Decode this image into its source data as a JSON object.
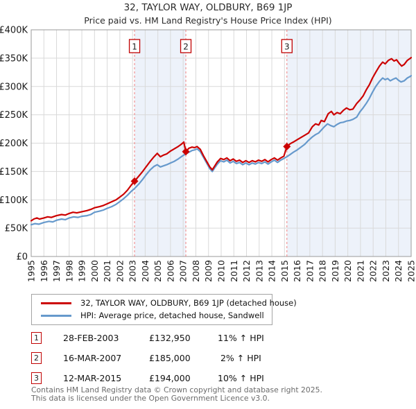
{
  "title": "32, TAYLOR WAY, OLDBURY, B69 1JP",
  "subtitle": "Price paid vs. HM Land Registry's House Price Index (HPI)",
  "chart_data": {
    "type": "line",
    "title": "32, TAYLOR WAY, OLDBURY, B69 1JP",
    "subtitle": "Price paid vs. HM Land Registry's House Price Index (HPI)",
    "x_axis": {
      "range": [
        1995,
        2025
      ],
      "ticks": [
        1995,
        1996,
        1997,
        1998,
        1999,
        2000,
        2001,
        2002,
        2003,
        2004,
        2005,
        2006,
        2007,
        2008,
        2009,
        2010,
        2011,
        2012,
        2013,
        2014,
        2015,
        2016,
        2017,
        2018,
        2019,
        2020,
        2021,
        2022,
        2023,
        2024,
        2025
      ]
    },
    "y_axis": {
      "range_k": [
        0,
        400
      ],
      "tick_step_k": 50,
      "ticks": [
        "£0",
        "£50K",
        "£100K",
        "£150K",
        "£200K",
        "£250K",
        "£300K",
        "£350K",
        "£400K"
      ]
    },
    "grid": true,
    "series": [
      {
        "name": "32, TAYLOR WAY, OLDBURY, B69 1JP (detached house)",
        "color": "#cc0000",
        "points": [
          [
            1995.0,
            63
          ],
          [
            1995.2,
            66
          ],
          [
            1995.45,
            68
          ],
          [
            1995.65,
            66
          ],
          [
            1996.0,
            68
          ],
          [
            1996.3,
            70
          ],
          [
            1996.6,
            69
          ],
          [
            1997.0,
            72
          ],
          [
            1997.4,
            74
          ],
          [
            1997.7,
            73
          ],
          [
            1998.0,
            76
          ],
          [
            1998.3,
            78
          ],
          [
            1998.6,
            77
          ],
          [
            1999.0,
            79
          ],
          [
            1999.4,
            81
          ],
          [
            1999.7,
            83
          ],
          [
            2000.0,
            86
          ],
          [
            2000.4,
            88
          ],
          [
            2000.7,
            90
          ],
          [
            2001.0,
            93
          ],
          [
            2001.3,
            96
          ],
          [
            2001.7,
            100
          ],
          [
            2002.0,
            105
          ],
          [
            2002.3,
            110
          ],
          [
            2002.6,
            117
          ],
          [
            2002.9,
            126
          ],
          [
            2003.16,
            132.95
          ],
          [
            2003.5,
            142
          ],
          [
            2003.8,
            150
          ],
          [
            2004.1,
            159
          ],
          [
            2004.4,
            168
          ],
          [
            2004.7,
            176
          ],
          [
            2004.95,
            182
          ],
          [
            2005.2,
            176
          ],
          [
            2005.45,
            179
          ],
          [
            2005.7,
            181
          ],
          [
            2006.0,
            186
          ],
          [
            2006.3,
            190
          ],
          [
            2006.6,
            194
          ],
          [
            2006.85,
            198
          ],
          [
            2007.05,
            202
          ],
          [
            2007.21,
            185
          ],
          [
            2007.45,
            191
          ],
          [
            2007.7,
            193
          ],
          [
            2007.9,
            192
          ],
          [
            2008.1,
            194
          ],
          [
            2008.35,
            189
          ],
          [
            2008.6,
            178
          ],
          [
            2008.85,
            168
          ],
          [
            2009.1,
            158
          ],
          [
            2009.3,
            153
          ],
          [
            2009.5,
            160
          ],
          [
            2009.7,
            167
          ],
          [
            2009.95,
            173
          ],
          [
            2010.2,
            171
          ],
          [
            2010.45,
            174
          ],
          [
            2010.7,
            169
          ],
          [
            2010.95,
            172
          ],
          [
            2011.2,
            168
          ],
          [
            2011.45,
            170
          ],
          [
            2011.7,
            166
          ],
          [
            2011.95,
            169
          ],
          [
            2012.2,
            166
          ],
          [
            2012.45,
            169
          ],
          [
            2012.7,
            167
          ],
          [
            2012.95,
            170
          ],
          [
            2013.2,
            168
          ],
          [
            2013.45,
            171
          ],
          [
            2013.7,
            167
          ],
          [
            2013.95,
            171
          ],
          [
            2014.2,
            174
          ],
          [
            2014.45,
            170
          ],
          [
            2014.7,
            174
          ],
          [
            2014.95,
            177
          ],
          [
            2015.19,
            194
          ],
          [
            2015.45,
            199
          ],
          [
            2015.7,
            202
          ],
          [
            2016.0,
            206
          ],
          [
            2016.3,
            210
          ],
          [
            2016.6,
            214
          ],
          [
            2016.9,
            218
          ],
          [
            2017.2,
            229
          ],
          [
            2017.45,
            234
          ],
          [
            2017.7,
            232
          ],
          [
            2017.9,
            240
          ],
          [
            2018.15,
            238
          ],
          [
            2018.45,
            252
          ],
          [
            2018.7,
            256
          ],
          [
            2018.9,
            250
          ],
          [
            2019.15,
            254
          ],
          [
            2019.4,
            252
          ],
          [
            2019.65,
            258
          ],
          [
            2019.9,
            262
          ],
          [
            2020.15,
            259
          ],
          [
            2020.4,
            260
          ],
          [
            2020.7,
            270
          ],
          [
            2020.95,
            276
          ],
          [
            2021.2,
            283
          ],
          [
            2021.45,
            294
          ],
          [
            2021.7,
            303
          ],
          [
            2021.95,
            315
          ],
          [
            2022.2,
            325
          ],
          [
            2022.5,
            336
          ],
          [
            2022.75,
            343
          ],
          [
            2022.95,
            340
          ],
          [
            2023.2,
            346
          ],
          [
            2023.45,
            349
          ],
          [
            2023.65,
            345
          ],
          [
            2023.85,
            347
          ],
          [
            2024.05,
            341
          ],
          [
            2024.25,
            336
          ],
          [
            2024.45,
            339
          ],
          [
            2024.7,
            346
          ],
          [
            2024.95,
            350
          ],
          [
            2025.0,
            351
          ]
        ]
      },
      {
        "name": "HPI: Average price, detached house, Sandwell",
        "color": "#6699cc",
        "points": [
          [
            1995.0,
            56
          ],
          [
            1995.3,
            58
          ],
          [
            1995.6,
            57
          ],
          [
            1996.0,
            60
          ],
          [
            1996.4,
            62
          ],
          [
            1996.7,
            61
          ],
          [
            1997.0,
            64
          ],
          [
            1997.4,
            66
          ],
          [
            1997.7,
            65
          ],
          [
            1998.0,
            68
          ],
          [
            1998.35,
            70
          ],
          [
            1998.7,
            69
          ],
          [
            1999.0,
            71
          ],
          [
            1999.4,
            72
          ],
          [
            1999.7,
            74
          ],
          [
            2000.0,
            78
          ],
          [
            2000.4,
            80
          ],
          [
            2000.7,
            82
          ],
          [
            2001.0,
            85
          ],
          [
            2001.35,
            88
          ],
          [
            2001.7,
            92
          ],
          [
            2002.0,
            97
          ],
          [
            2002.3,
            102
          ],
          [
            2002.6,
            108
          ],
          [
            2002.9,
            115
          ],
          [
            2003.16,
            120
          ],
          [
            2003.5,
            128
          ],
          [
            2003.8,
            136
          ],
          [
            2004.1,
            145
          ],
          [
            2004.4,
            153
          ],
          [
            2004.7,
            159
          ],
          [
            2004.95,
            162
          ],
          [
            2005.2,
            158
          ],
          [
            2005.45,
            160
          ],
          [
            2005.7,
            162
          ],
          [
            2006.0,
            165
          ],
          [
            2006.3,
            168
          ],
          [
            2006.6,
            172
          ],
          [
            2006.85,
            176
          ],
          [
            2007.05,
            179
          ],
          [
            2007.21,
            181
          ],
          [
            2007.45,
            184
          ],
          [
            2007.7,
            187
          ],
          [
            2007.9,
            188
          ],
          [
            2008.1,
            190
          ],
          [
            2008.35,
            185
          ],
          [
            2008.6,
            175
          ],
          [
            2008.85,
            165
          ],
          [
            2009.1,
            155
          ],
          [
            2009.3,
            150
          ],
          [
            2009.5,
            157
          ],
          [
            2009.7,
            163
          ],
          [
            2009.95,
            169
          ],
          [
            2010.2,
            167
          ],
          [
            2010.45,
            170
          ],
          [
            2010.7,
            165
          ],
          [
            2010.95,
            168
          ],
          [
            2011.2,
            164
          ],
          [
            2011.45,
            166
          ],
          [
            2011.7,
            162
          ],
          [
            2011.95,
            165
          ],
          [
            2012.2,
            162
          ],
          [
            2012.45,
            165
          ],
          [
            2012.7,
            163
          ],
          [
            2012.95,
            166
          ],
          [
            2013.2,
            164
          ],
          [
            2013.45,
            167
          ],
          [
            2013.7,
            163
          ],
          [
            2013.95,
            167
          ],
          [
            2014.2,
            170
          ],
          [
            2014.45,
            166
          ],
          [
            2014.7,
            170
          ],
          [
            2014.95,
            173
          ],
          [
            2015.19,
            176
          ],
          [
            2015.45,
            180
          ],
          [
            2015.7,
            184
          ],
          [
            2016.0,
            188
          ],
          [
            2016.3,
            193
          ],
          [
            2016.6,
            198
          ],
          [
            2016.9,
            205
          ],
          [
            2017.2,
            211
          ],
          [
            2017.45,
            215
          ],
          [
            2017.7,
            218
          ],
          [
            2017.95,
            224
          ],
          [
            2018.15,
            229
          ],
          [
            2018.4,
            234
          ],
          [
            2018.65,
            231
          ],
          [
            2018.9,
            229
          ],
          [
            2019.15,
            233
          ],
          [
            2019.4,
            236
          ],
          [
            2019.65,
            237
          ],
          [
            2019.9,
            239
          ],
          [
            2020.15,
            240
          ],
          [
            2020.4,
            242
          ],
          [
            2020.7,
            246
          ],
          [
            2020.95,
            255
          ],
          [
            2021.2,
            262
          ],
          [
            2021.45,
            270
          ],
          [
            2021.7,
            279
          ],
          [
            2021.95,
            290
          ],
          [
            2022.2,
            300
          ],
          [
            2022.5,
            309
          ],
          [
            2022.75,
            315
          ],
          [
            2022.95,
            312
          ],
          [
            2023.15,
            314
          ],
          [
            2023.35,
            310
          ],
          [
            2023.6,
            313
          ],
          [
            2023.8,
            315
          ],
          [
            2024.0,
            311
          ],
          [
            2024.2,
            308
          ],
          [
            2024.45,
            310
          ],
          [
            2024.7,
            315
          ],
          [
            2024.95,
            318
          ],
          [
            2025.0,
            319
          ]
        ]
      }
    ],
    "sales": [
      {
        "label": "1",
        "year": 2003.16,
        "price_k": 132.95
      },
      {
        "label": "2",
        "year": 2007.21,
        "price_k": 185
      },
      {
        "label": "3",
        "year": 2015.19,
        "price_k": 194
      }
    ],
    "shaded_bands": [
      [
        2003.16,
        2007.21
      ],
      [
        2015.19,
        2025.0
      ]
    ],
    "legend_position": "bottom",
    "colors": {
      "band": "#edf2fa",
      "grid": "#d9d9d9",
      "frame": "#999999",
      "sale_dash": "#f08080",
      "sale_box_border": "#c00000",
      "marker": "#cc0000",
      "tick_text": "#1a1a1a"
    }
  },
  "legend": {
    "items": [
      {
        "label": "32, TAYLOR WAY, OLDBURY, B69 1JP (detached house)",
        "color": "#cc0000"
      },
      {
        "label": "HPI: Average price, detached house, Sandwell",
        "color": "#6699cc"
      }
    ]
  },
  "sales_table": [
    {
      "num": "1",
      "date": "28-FEB-2003",
      "price": "£132,950",
      "delta": "11% ↑ HPI"
    },
    {
      "num": "2",
      "date": "16-MAR-2007",
      "price": "£185,000",
      "delta": " 2% ↑ HPI"
    },
    {
      "num": "3",
      "date": "12-MAR-2015",
      "price": "£194,000",
      "delta": "10% ↑ HPI"
    }
  ],
  "footer": {
    "line1": "Contains HM Land Registry data © Crown copyright and database right 2025.",
    "line2": "This data is licensed under the Open Government Licence v3.0."
  }
}
